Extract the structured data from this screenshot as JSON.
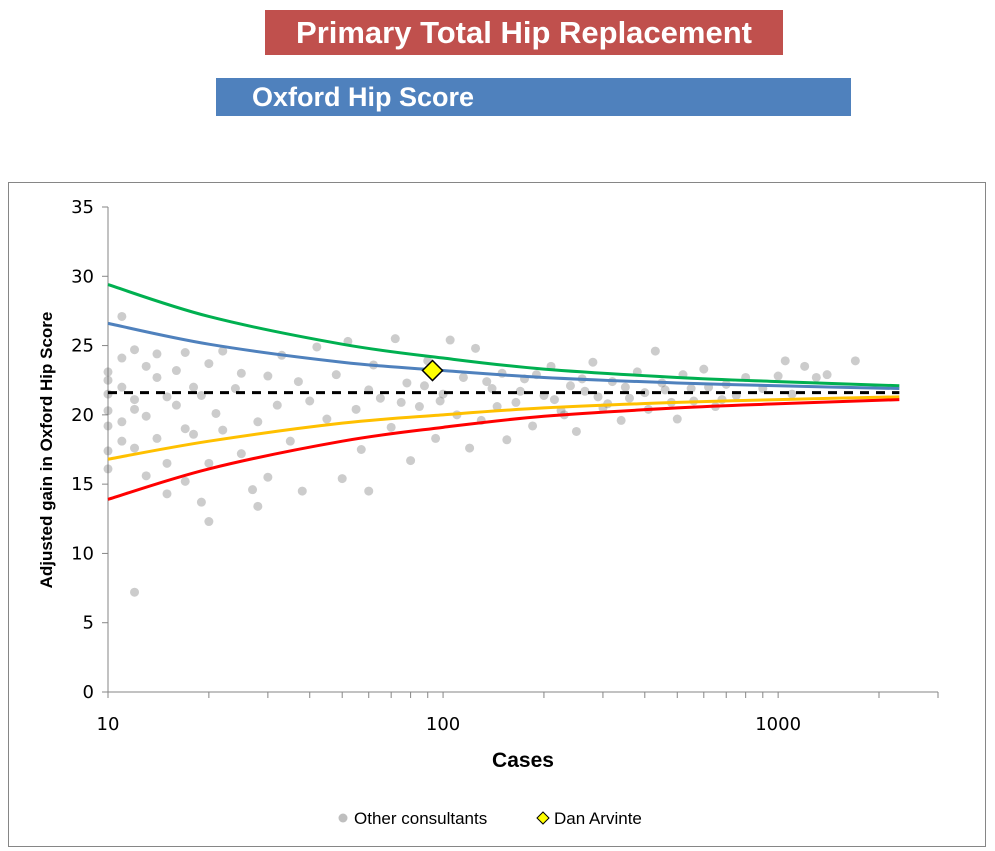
{
  "header": {
    "title": "Primary Total Hip Replacement",
    "subtitle": "Oxford Hip Score"
  },
  "colors": {
    "title_bg": "#C0504D",
    "subtitle_bg": "#4F81BD",
    "points": "#7f7f7f",
    "highlight": "#FFFF00",
    "upper_998": "#00B050",
    "upper_95": "#4F81BD",
    "lower_95": "#FFC000",
    "lower_998": "#FF0000",
    "mean": "#000000"
  },
  "chart_data": {
    "type": "scatter",
    "xlabel": "Cases",
    "ylabel": "Adjusted gain in Oxford Hip Score",
    "xscale": "log",
    "xlim": [
      10,
      3000
    ],
    "ylim": [
      0,
      35
    ],
    "xticks": [
      "10",
      "100",
      "1000"
    ],
    "yticks": [
      "0",
      "5",
      "10",
      "15",
      "20",
      "25",
      "30",
      "35"
    ],
    "grid": false,
    "legend_position": "bottom",
    "legend": [
      {
        "label": "Other consultants",
        "marker": "circle"
      },
      {
        "label": "Dan Arvinte",
        "marker": "diamond"
      }
    ],
    "highlight": {
      "name": "Dan Arvinte",
      "x": 93,
      "y": 23.2
    },
    "mean": 21.6,
    "curves_x": [
      10,
      20,
      50,
      100,
      200,
      500,
      1000,
      2300
    ],
    "curves": {
      "upper_998": [
        29.4,
        27.1,
        25.1,
        24.1,
        23.3,
        22.7,
        22.4,
        22.1
      ],
      "upper_95": [
        26.6,
        25.1,
        23.8,
        23.2,
        22.7,
        22.3,
        22.1,
        21.9
      ],
      "lower_95": [
        16.8,
        18.1,
        19.4,
        20.0,
        20.5,
        20.9,
        21.1,
        21.3
      ],
      "lower_998": [
        13.9,
        16.1,
        18.1,
        19.1,
        19.9,
        20.5,
        20.8,
        21.1
      ]
    },
    "points": [
      [
        10,
        23.1
      ],
      [
        10,
        21.5
      ],
      [
        10,
        19.2
      ],
      [
        10,
        17.4
      ],
      [
        10,
        16.1
      ],
      [
        10,
        22.5
      ],
      [
        10,
        20.3
      ],
      [
        11,
        27.1
      ],
      [
        11,
        24.1
      ],
      [
        11,
        22.0
      ],
      [
        11,
        19.5
      ],
      [
        11,
        18.1
      ],
      [
        12,
        7.2
      ],
      [
        12,
        24.7
      ],
      [
        12,
        21.1
      ],
      [
        12,
        20.4
      ],
      [
        12,
        17.6
      ],
      [
        13,
        23.5
      ],
      [
        13,
        15.6
      ],
      [
        13,
        19.9
      ],
      [
        14,
        24.4
      ],
      [
        14,
        22.7
      ],
      [
        14,
        18.3
      ],
      [
        15,
        21.3
      ],
      [
        15,
        16.5
      ],
      [
        15,
        14.3
      ],
      [
        16,
        23.2
      ],
      [
        16,
        20.7
      ],
      [
        17,
        24.5
      ],
      [
        17,
        19.0
      ],
      [
        17,
        15.2
      ],
      [
        18,
        22.0
      ],
      [
        18,
        18.6
      ],
      [
        19,
        21.4
      ],
      [
        19,
        13.7
      ],
      [
        20,
        12.3
      ],
      [
        20,
        16.5
      ],
      [
        20,
        23.7
      ],
      [
        21,
        20.1
      ],
      [
        22,
        24.6
      ],
      [
        22,
        18.9
      ],
      [
        24,
        21.9
      ],
      [
        25,
        23.0
      ],
      [
        25,
        17.2
      ],
      [
        27,
        14.6
      ],
      [
        28,
        19.5
      ],
      [
        28,
        13.4
      ],
      [
        30,
        22.8
      ],
      [
        30,
        15.5
      ],
      [
        32,
        20.7
      ],
      [
        33,
        24.3
      ],
      [
        35,
        18.1
      ],
      [
        37,
        22.4
      ],
      [
        38,
        14.5
      ],
      [
        40,
        21.0
      ],
      [
        42,
        24.9
      ],
      [
        45,
        19.7
      ],
      [
        48,
        22.9
      ],
      [
        50,
        15.4
      ],
      [
        52,
        25.3
      ],
      [
        55,
        20.4
      ],
      [
        57,
        17.5
      ],
      [
        60,
        14.5
      ],
      [
        62,
        23.6
      ],
      [
        65,
        21.2
      ],
      [
        70,
        19.1
      ],
      [
        72,
        25.5
      ],
      [
        78,
        22.3
      ],
      [
        80,
        16.7
      ],
      [
        85,
        20.6
      ],
      [
        90,
        23.9
      ],
      [
        95,
        18.3
      ],
      [
        100,
        21.5
      ],
      [
        105,
        25.4
      ],
      [
        110,
        20.0
      ],
      [
        115,
        22.7
      ],
      [
        120,
        17.6
      ],
      [
        125,
        24.8
      ],
      [
        130,
        19.6
      ],
      [
        140,
        21.9
      ],
      [
        150,
        23.0
      ],
      [
        155,
        18.2
      ],
      [
        165,
        20.9
      ],
      [
        175,
        22.6
      ],
      [
        185,
        19.2
      ],
      [
        200,
        21.4
      ],
      [
        210,
        23.5
      ],
      [
        225,
        20.3
      ],
      [
        240,
        22.1
      ],
      [
        250,
        18.8
      ],
      [
        265,
        21.7
      ],
      [
        280,
        23.8
      ],
      [
        300,
        20.5
      ],
      [
        320,
        22.4
      ],
      [
        340,
        19.6
      ],
      [
        360,
        21.2
      ],
      [
        380,
        23.1
      ],
      [
        410,
        20.4
      ],
      [
        430,
        24.6
      ],
      [
        460,
        21.8
      ],
      [
        500,
        19.7
      ],
      [
        520,
        22.9
      ],
      [
        560,
        21.0
      ],
      [
        600,
        23.3
      ],
      [
        650,
        20.6
      ],
      [
        700,
        22.2
      ],
      [
        750,
        21.4
      ],
      [
        800,
        22.7
      ],
      [
        900,
        21.9
      ],
      [
        1000,
        22.8
      ],
      [
        1050,
        23.9
      ],
      [
        1100,
        21.5
      ],
      [
        1200,
        23.5
      ],
      [
        1300,
        22.7
      ],
      [
        1400,
        22.9
      ],
      [
        1700,
        23.9
      ],
      [
        60,
        21.8
      ],
      [
        75,
        20.9
      ],
      [
        88,
        22.1
      ],
      [
        98,
        21.0
      ],
      [
        135,
        22.4
      ],
      [
        145,
        20.6
      ],
      [
        170,
        21.7
      ],
      [
        190,
        22.9
      ],
      [
        215,
        21.1
      ],
      [
        230,
        20.0
      ],
      [
        260,
        22.6
      ],
      [
        290,
        21.3
      ],
      [
        310,
        20.8
      ],
      [
        350,
        22.0
      ],
      [
        400,
        21.6
      ],
      [
        450,
        22.3
      ],
      [
        480,
        20.9
      ],
      [
        550,
        21.9
      ],
      [
        620,
        22.0
      ],
      [
        680,
        21.1
      ]
    ]
  }
}
